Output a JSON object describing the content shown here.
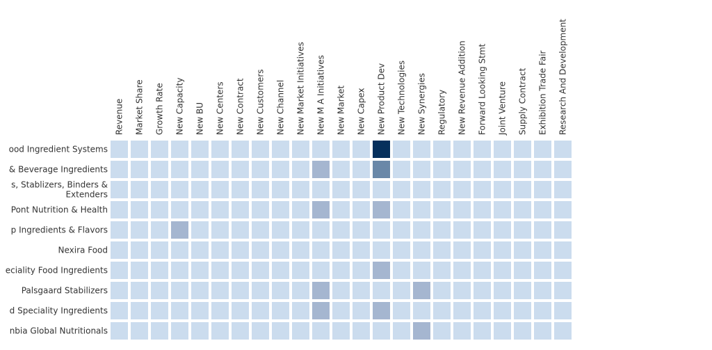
{
  "chart_data": {
    "type": "heatmap",
    "columns": [
      "Revenue",
      "Market Share",
      "Growth Rate",
      "New Capacity",
      "New BU",
      "New Centers",
      "New Contract",
      "New Customers",
      "New Channel",
      "New Market Initiatives",
      "New M A Initiatives",
      "New Market",
      "New Capex",
      "New Product Dev",
      "New Technologies",
      "New Synergies",
      "Regulatory",
      "New Revenue Addition",
      "Forward Looking Stmt",
      "Joint Venture",
      "Supply Contract",
      "Exhibition Trade Fair",
      "Research And Development"
    ],
    "rows": [
      {
        "label": "ood Ingredient Systems",
        "values": [
          0,
          0,
          0,
          0,
          0,
          0,
          0,
          0,
          0,
          0,
          0,
          0,
          0,
          3,
          0,
          0,
          0,
          0,
          0,
          0,
          0,
          0,
          0
        ]
      },
      {
        "label": "& Beverage Ingredients",
        "values": [
          0,
          0,
          0,
          0,
          0,
          0,
          0,
          0,
          0,
          0,
          1,
          0,
          0,
          2,
          0,
          0,
          0,
          0,
          0,
          0,
          0,
          0,
          0
        ]
      },
      {
        "label": "s, Stablizers, Binders &\nExtenders",
        "values": [
          0,
          0,
          0,
          0,
          0,
          0,
          0,
          0,
          0,
          0,
          0,
          0,
          0,
          0,
          0,
          0,
          0,
          0,
          0,
          0,
          0,
          0,
          0
        ]
      },
      {
        "label": "Pont Nutrition & Health",
        "values": [
          0,
          0,
          0,
          0,
          0,
          0,
          0,
          0,
          0,
          0,
          1,
          0,
          0,
          1,
          0,
          0,
          0,
          0,
          0,
          0,
          0,
          0,
          0
        ]
      },
      {
        "label": "p Ingredients & Flavors",
        "values": [
          0,
          0,
          0,
          1,
          0,
          0,
          0,
          0,
          0,
          0,
          0,
          0,
          0,
          0,
          0,
          0,
          0,
          0,
          0,
          0,
          0,
          0,
          0
        ]
      },
      {
        "label": "Nexira Food",
        "values": [
          0,
          0,
          0,
          0,
          0,
          0,
          0,
          0,
          0,
          0,
          0,
          0,
          0,
          0,
          0,
          0,
          0,
          0,
          0,
          0,
          0,
          0,
          0
        ]
      },
      {
        "label": "eciality Food Ingredients",
        "values": [
          0,
          0,
          0,
          0,
          0,
          0,
          0,
          0,
          0,
          0,
          0,
          0,
          0,
          1,
          0,
          0,
          0,
          0,
          0,
          0,
          0,
          0,
          0
        ]
      },
      {
        "label": "Palsgaard Stabilizers",
        "values": [
          0,
          0,
          0,
          0,
          0,
          0,
          0,
          0,
          0,
          0,
          1,
          0,
          0,
          0,
          0,
          1,
          0,
          0,
          0,
          0,
          0,
          0,
          0
        ]
      },
      {
        "label": "d Speciality Ingredients",
        "values": [
          0,
          0,
          0,
          0,
          0,
          0,
          0,
          0,
          0,
          0,
          1,
          0,
          0,
          1,
          0,
          0,
          0,
          0,
          0,
          0,
          0,
          0,
          0
        ]
      },
      {
        "label": "nbia Global Nutritionals",
        "values": [
          0,
          0,
          0,
          0,
          0,
          0,
          0,
          0,
          0,
          0,
          0,
          0,
          0,
          0,
          0,
          1,
          0,
          0,
          0,
          0,
          0,
          0,
          0
        ]
      }
    ],
    "colors": [
      "#cbdcee",
      "#a5b6d0",
      "#6a88a8",
      "#06305c"
    ]
  }
}
